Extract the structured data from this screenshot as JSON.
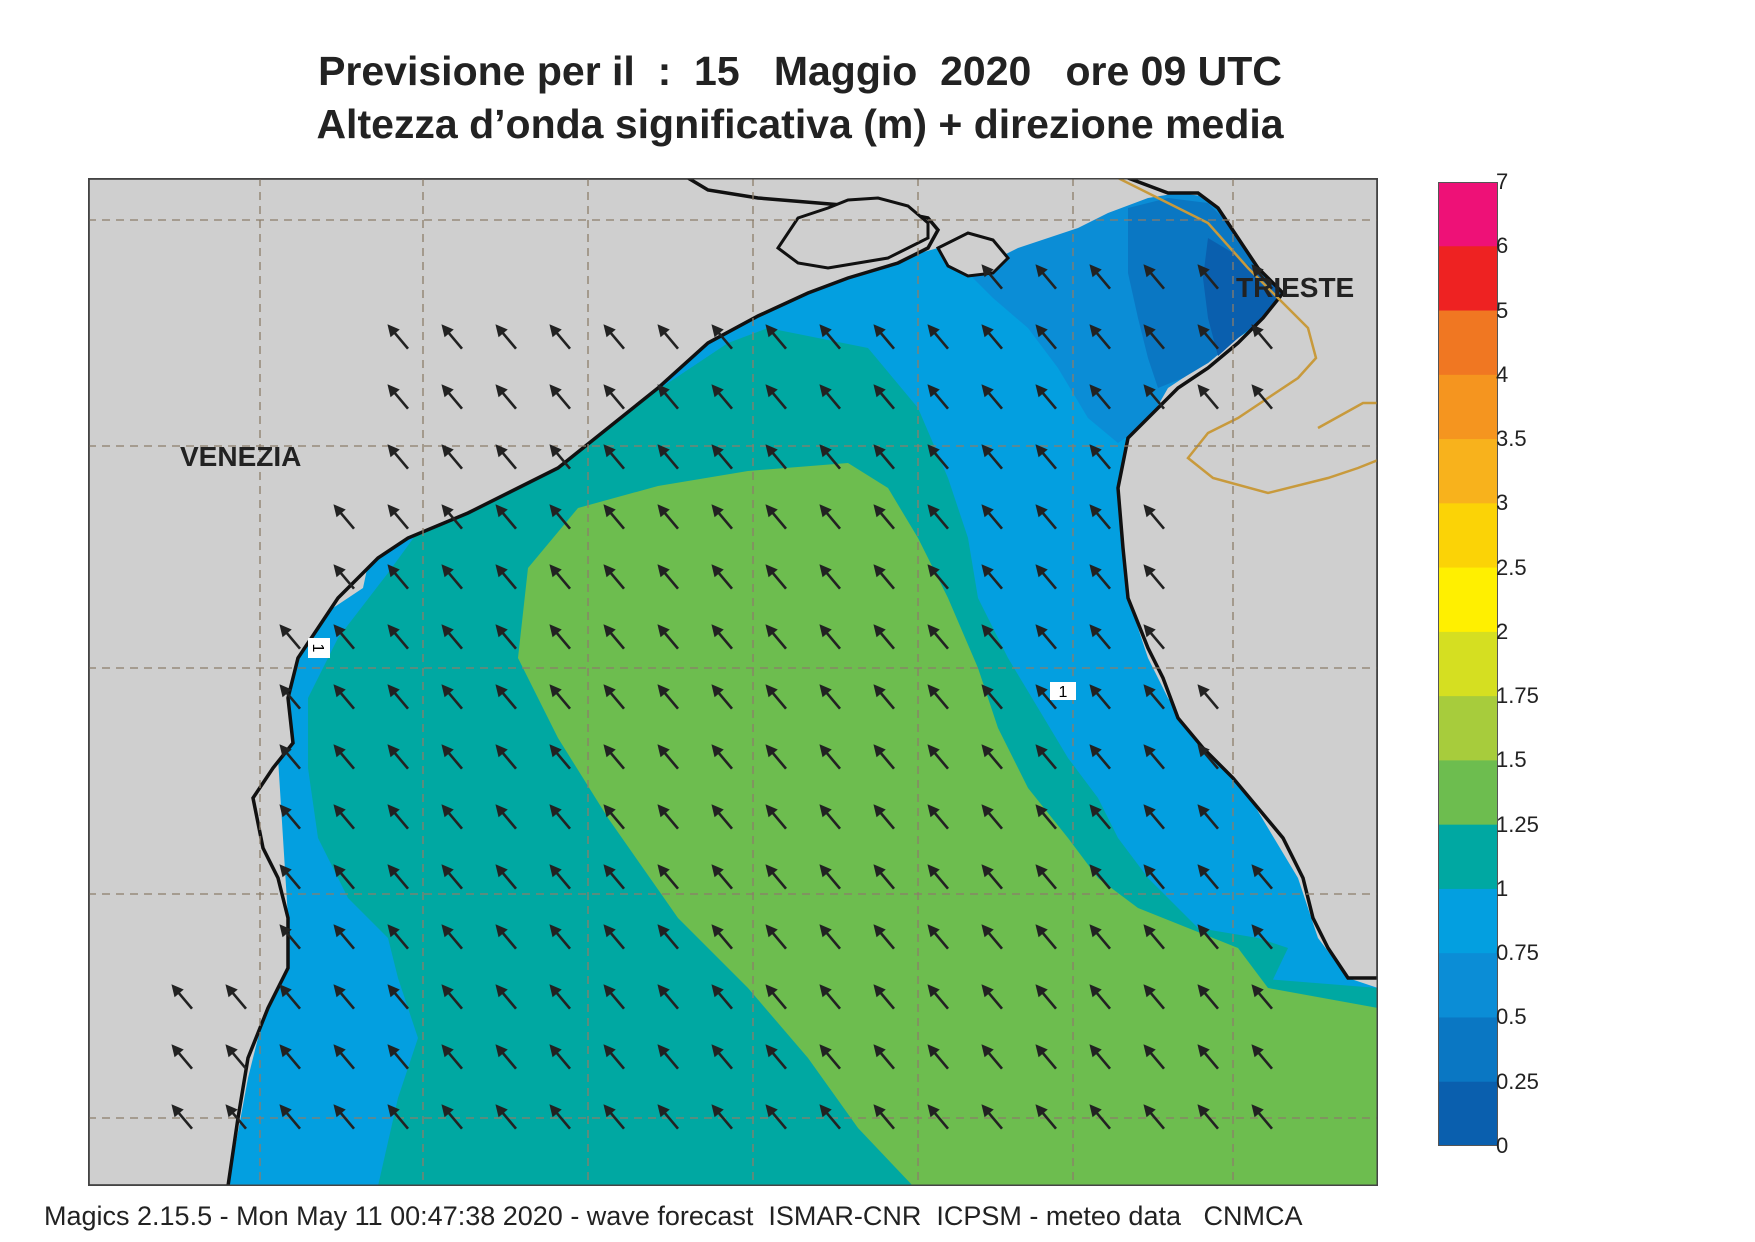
{
  "title": {
    "line1": "Previsione per il  :  15   Maggio  2020   ore 09 UTC",
    "line2": "Altezza d’onda significativa (m) + direzione media"
  },
  "places": {
    "venezia": "VENEZIA",
    "trieste": "TRIESTE"
  },
  "contour_labels": [
    "1",
    "1"
  ],
  "legend": {
    "labels": [
      "7",
      "6",
      "5",
      "4",
      "3.5",
      "3",
      "2.5",
      "2",
      "1.75",
      "1.5",
      "1.25",
      "1",
      "0.75",
      "0.5",
      "0.25",
      "0"
    ],
    "colors": [
      "#ee1177",
      "#ee2222",
      "#f07722",
      "#f5951f",
      "#f8b21c",
      "#fbd306",
      "#fff000",
      "#d5df21",
      "#a7cc3c",
      "#6dbd4f",
      "#00a8a2",
      "#039fe0",
      "#0b8dd6",
      "#0a77c3",
      "#0a5fae"
    ]
  },
  "colors": {
    "land": "#cfcfcf",
    "band_0_25_0_5": "#0a77c3",
    "band_0_5_0_75": "#0b8dd6",
    "band_0_75_1": "#039fe0",
    "band_1_1_25": "#00a8a2",
    "band_1_25_1_5": "#6dbd4f"
  },
  "arrows": {
    "direction": "NW",
    "color": "#222222"
  },
  "footer": "Magics 2.15.5 - Mon May 11 00:47:38 2020 - wave forecast  ISMAR-CNR  ICPSM - meteo data   CNMCA"
}
